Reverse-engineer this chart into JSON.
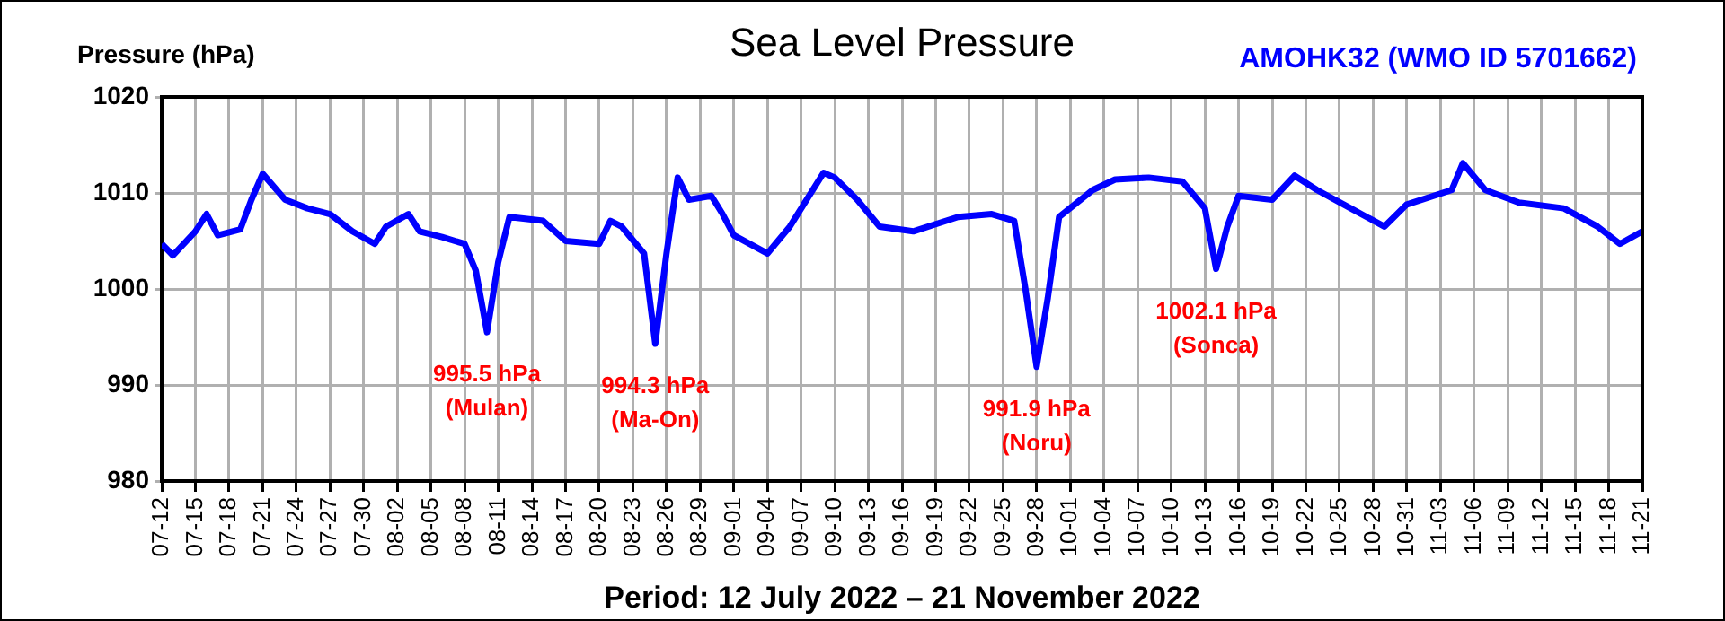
{
  "chart_data": {
    "type": "line",
    "title": "Sea Level Pressure",
    "subtitle": "AMOHK32 (WMO ID 5701662)",
    "ylabel": "Pressure (hPa)",
    "xlabel": "Period: 12 July 2022 – 21 November 2022",
    "x": [
      "2022-07-12",
      "2022-07-13",
      "2022-07-15",
      "2022-07-16",
      "2022-07-17",
      "2022-07-19",
      "2022-07-20",
      "2022-07-21",
      "2022-07-23",
      "2022-07-25",
      "2022-07-27",
      "2022-07-29",
      "2022-07-31",
      "2022-08-01",
      "2022-08-03",
      "2022-08-04",
      "2022-08-06",
      "2022-08-08",
      "2022-08-09",
      "2022-08-10",
      "2022-08-11",
      "2022-08-12",
      "2022-08-15",
      "2022-08-17",
      "2022-08-20",
      "2022-08-21",
      "2022-08-22",
      "2022-08-24",
      "2022-08-25",
      "2022-08-26",
      "2022-08-27",
      "2022-08-28",
      "2022-08-30",
      "2022-08-31",
      "2022-09-01",
      "2022-09-04",
      "2022-09-06",
      "2022-09-09",
      "2022-09-10",
      "2022-09-12",
      "2022-09-14",
      "2022-09-17",
      "2022-09-21",
      "2022-09-24",
      "2022-09-26",
      "2022-09-27",
      "2022-09-28",
      "2022-09-29",
      "2022-09-30",
      "2022-10-03",
      "2022-10-05",
      "2022-10-08",
      "2022-10-11",
      "2022-10-13",
      "2022-10-14",
      "2022-10-15",
      "2022-10-16",
      "2022-10-19",
      "2022-10-21",
      "2022-10-23",
      "2022-10-26",
      "2022-10-29",
      "2022-10-31",
      "2022-11-04",
      "2022-11-05",
      "2022-11-07",
      "2022-11-10",
      "2022-11-14",
      "2022-11-17",
      "2022-11-19",
      "2022-11-21"
    ],
    "series": [
      {
        "color": "#0000ff",
        "values": [
          1004.7,
          1003.5,
          1006,
          1007.8,
          1005.6,
          1006.2,
          1009.3,
          1012,
          1009.3,
          1008.4,
          1007.8,
          1006,
          1004.7,
          1006.5,
          1007.8,
          1006,
          1005.4,
          1004.7,
          1001.9,
          995.5,
          1002.8,
          1007.5,
          1007.1,
          1005,
          1004.7,
          1007.1,
          1006.5,
          1003.7,
          994.3,
          1003.7,
          1011.6,
          1009.3,
          1009.7,
          1007.8,
          1005.6,
          1003.7,
          1006.5,
          1012.1,
          1011.6,
          1009.3,
          1006.5,
          1006,
          1007.5,
          1007.8,
          1007.1,
          1000,
          991.9,
          999.1,
          1007.5,
          1010.3,
          1011.4,
          1011.6,
          1011.2,
          1008.4,
          1002.1,
          1006.5,
          1009.7,
          1009.3,
          1011.8,
          1010.3,
          1008.4,
          1006.5,
          1008.8,
          1010.3,
          1013.1,
          1010.3,
          1009,
          1008.4,
          1006.5,
          1004.7,
          1006
        ]
      }
    ],
    "xlim": [
      "2022-07-12",
      "2022-11-21"
    ],
    "xticks": [
      {
        "value": "2022-07-12",
        "label": "07-12"
      },
      {
        "value": "2022-07-15",
        "label": "07-15"
      },
      {
        "value": "2022-07-18",
        "label": "07-18"
      },
      {
        "value": "2022-07-21",
        "label": "07-21"
      },
      {
        "value": "2022-07-24",
        "label": "07-24"
      },
      {
        "value": "2022-07-27",
        "label": "07-27"
      },
      {
        "value": "2022-07-30",
        "label": "07-30"
      },
      {
        "value": "2022-08-02",
        "label": "08-02"
      },
      {
        "value": "2022-08-05",
        "label": "08-05"
      },
      {
        "value": "2022-08-08",
        "label": "08-08"
      },
      {
        "value": "2022-08-11",
        "label": "08-11"
      },
      {
        "value": "2022-08-14",
        "label": "08-14"
      },
      {
        "value": "2022-08-17",
        "label": "08-17"
      },
      {
        "value": "2022-08-20",
        "label": "08-20"
      },
      {
        "value": "2022-08-23",
        "label": "08-23"
      },
      {
        "value": "2022-08-26",
        "label": "08-26"
      },
      {
        "value": "2022-08-29",
        "label": "08-29"
      },
      {
        "value": "2022-09-01",
        "label": "09-01"
      },
      {
        "value": "2022-09-04",
        "label": "09-04"
      },
      {
        "value": "2022-09-07",
        "label": "09-07"
      },
      {
        "value": "2022-09-10",
        "label": "09-10"
      },
      {
        "value": "2022-09-13",
        "label": "09-13"
      },
      {
        "value": "2022-09-16",
        "label": "09-16"
      },
      {
        "value": "2022-09-19",
        "label": "09-19"
      },
      {
        "value": "2022-09-22",
        "label": "09-22"
      },
      {
        "value": "2022-09-25",
        "label": "09-25"
      },
      {
        "value": "2022-09-28",
        "label": "09-28"
      },
      {
        "value": "2022-10-01",
        "label": "10-01"
      },
      {
        "value": "2022-10-04",
        "label": "10-04"
      },
      {
        "value": "2022-10-07",
        "label": "10-07"
      },
      {
        "value": "2022-10-10",
        "label": "10-10"
      },
      {
        "value": "2022-10-13",
        "label": "10-13"
      },
      {
        "value": "2022-10-16",
        "label": "10-16"
      },
      {
        "value": "2022-10-19",
        "label": "10-19"
      },
      {
        "value": "2022-10-22",
        "label": "10-22"
      },
      {
        "value": "2022-10-25",
        "label": "10-25"
      },
      {
        "value": "2022-10-28",
        "label": "10-28"
      },
      {
        "value": "2022-10-31",
        "label": "10-31"
      },
      {
        "value": "2022-11-03",
        "label": "11-03"
      },
      {
        "value": "2022-11-06",
        "label": "11-06"
      },
      {
        "value": "2022-11-09",
        "label": "11-09"
      },
      {
        "value": "2022-11-12",
        "label": "11-12"
      },
      {
        "value": "2022-11-15",
        "label": "11-15"
      },
      {
        "value": "2022-11-18",
        "label": "11-18"
      },
      {
        "value": "2022-11-21",
        "label": "11-21"
      }
    ],
    "ylim": [
      980,
      1020
    ],
    "yticks": [
      980,
      990,
      1000,
      1010,
      1020
    ],
    "grid": true,
    "legend": false,
    "marker": "none",
    "line_style": "solid",
    "annotations": [
      {
        "text": "995.5 hPa\n(Mulan)",
        "x": "2022-08-10",
        "y": 995.5
      },
      {
        "text": "994.3 hPa\n(Ma-On)",
        "x": "2022-08-25",
        "y": 994.3
      },
      {
        "text": "991.9 hPa\n(Noru)",
        "x": "2022-09-28",
        "y": 991.9
      },
      {
        "text": "1002.1 hPa\n(Sonca)",
        "x": "2022-10-14",
        "y": 1002.1
      }
    ]
  }
}
